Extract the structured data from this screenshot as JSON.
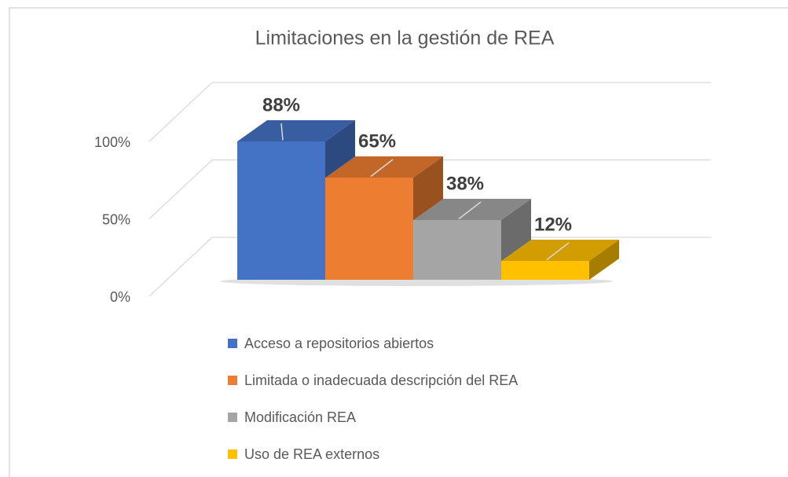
{
  "chart_data": {
    "type": "bar3d",
    "title": "Limitaciones en la gestión de REA",
    "series": [
      {
        "name": "Acceso a repositorios abiertos",
        "color": "#4472c4",
        "values": [
          88
        ],
        "value_labels": [
          "88%"
        ]
      },
      {
        "name": "Limitada o inadecuada descripción del REA",
        "color": "#ed7d31",
        "values": [
          65
        ],
        "value_labels": [
          "65%"
        ]
      },
      {
        "name": "Modificación REA",
        "color": "#a5a5a5",
        "values": [
          38
        ],
        "value_labels": [
          "38%"
        ]
      },
      {
        "name": "Uso de REA externos",
        "color": "#ffc000",
        "values": [
          12
        ],
        "value_labels": [
          "12%"
        ]
      }
    ],
    "ylim": [
      0,
      100
    ],
    "yticks": [
      {
        "value": 0,
        "label": "0%"
      },
      {
        "value": 50,
        "label": "50%"
      },
      {
        "value": 100,
        "label": "100%"
      }
    ],
    "grid": true,
    "legend": "bottom"
  }
}
